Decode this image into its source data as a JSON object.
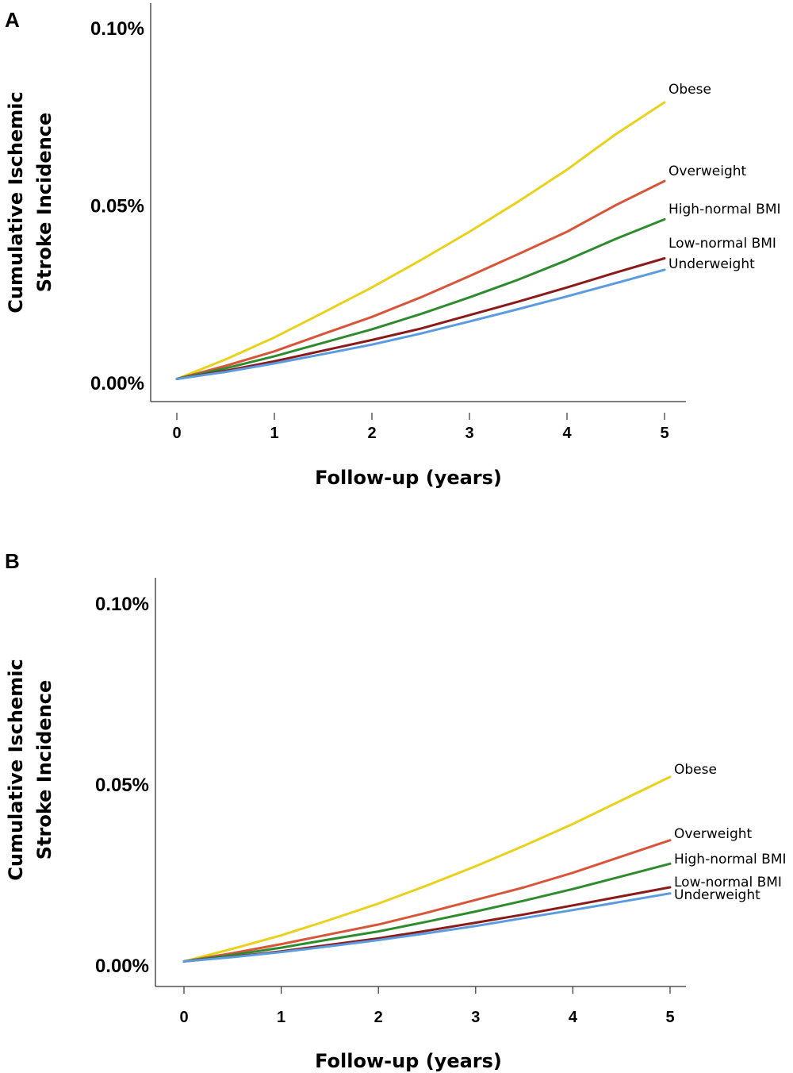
{
  "chart_data": [
    {
      "panel": "A",
      "type": "line",
      "xlabel": "Follow-up (years)",
      "ylabel_lines": [
        "Cumulative Ischemic",
        "Stroke Incidence"
      ],
      "x_ticks": [
        "0",
        "1",
        "2",
        "3",
        "4",
        "5"
      ],
      "y_ticks": [
        "0.00%",
        "0.05%",
        "0.10%"
      ],
      "xlim": [
        0,
        5
      ],
      "ylim": [
        0,
        0.1
      ],
      "grid": false,
      "legend": "direct labels at line ends",
      "x": [
        0,
        0.5,
        1,
        1.5,
        2,
        2.5,
        3,
        3.5,
        4,
        4.5,
        5
      ],
      "series": [
        {
          "name": "Obese",
          "color": "#E8D21C",
          "values": [
            0.001,
            0.0065,
            0.0127,
            0.0197,
            0.0268,
            0.0345,
            0.0425,
            0.051,
            0.06,
            0.07,
            0.079
          ]
        },
        {
          "name": "Overweight",
          "color": "#D9553A",
          "values": [
            0.001,
            0.0047,
            0.0088,
            0.0137,
            0.0185,
            0.024,
            0.03,
            0.0362,
            0.0425,
            0.05,
            0.0568
          ]
        },
        {
          "name": "High-normal BMI",
          "color": "#2E8B2E",
          "values": [
            0.001,
            0.004,
            0.0074,
            0.0112,
            0.015,
            0.0193,
            0.024,
            0.029,
            0.0345,
            0.0405,
            0.046
          ]
        },
        {
          "name": "Low-normal BMI",
          "color": "#8B1A1A",
          "values": [
            0.001,
            0.0033,
            0.006,
            0.009,
            0.012,
            0.0152,
            0.019,
            0.0228,
            0.0268,
            0.031,
            0.035
          ]
        },
        {
          "name": "Underweight",
          "color": "#5B9BE0",
          "values": [
            0.001,
            0.003,
            0.0054,
            0.008,
            0.0107,
            0.0138,
            0.0172,
            0.0207,
            0.0243,
            0.028,
            0.0318
          ]
        }
      ]
    },
    {
      "panel": "B",
      "type": "line",
      "xlabel": "Follow-up (years)",
      "ylabel_lines": [
        "Cumulative Ischemic",
        "Stroke Incidence"
      ],
      "x_ticks": [
        "0",
        "1",
        "2",
        "3",
        "4",
        "5"
      ],
      "y_ticks": [
        "0.00%",
        "0.05%",
        "0.10%"
      ],
      "xlim": [
        0,
        5
      ],
      "ylim": [
        0,
        0.1
      ],
      "grid": false,
      "legend": "direct labels at line ends",
      "x": [
        0,
        0.5,
        1,
        1.5,
        2,
        2.5,
        3,
        3.5,
        4,
        4.5,
        5
      ],
      "series": [
        {
          "name": "Obese",
          "color": "#E8D21C",
          "values": [
            0.001,
            0.0045,
            0.0082,
            0.0125,
            0.017,
            0.022,
            0.0273,
            0.033,
            0.039,
            0.0455,
            0.052
          ]
        },
        {
          "name": "Overweight",
          "color": "#D9553A",
          "values": [
            0.001,
            0.0033,
            0.0058,
            0.0085,
            0.0112,
            0.0145,
            0.018,
            0.0215,
            0.0255,
            0.03,
            0.0345
          ]
        },
        {
          "name": "High-normal BMI",
          "color": "#2E8B2E",
          "values": [
            0.001,
            0.0028,
            0.0048,
            0.0071,
            0.0093,
            0.012,
            0.0148,
            0.0178,
            0.021,
            0.0245,
            0.028
          ]
        },
        {
          "name": "Low-normal BMI",
          "color": "#8B1A1A",
          "values": [
            0.001,
            0.0023,
            0.0038,
            0.0056,
            0.0074,
            0.0095,
            0.0117,
            0.014,
            0.0165,
            0.019,
            0.0215
          ]
        },
        {
          "name": "Underweight",
          "color": "#5B9BE0",
          "values": [
            0.001,
            0.0022,
            0.0036,
            0.0052,
            0.0069,
            0.0088,
            0.0108,
            0.013,
            0.0152,
            0.0175,
            0.0198
          ]
        }
      ]
    }
  ]
}
